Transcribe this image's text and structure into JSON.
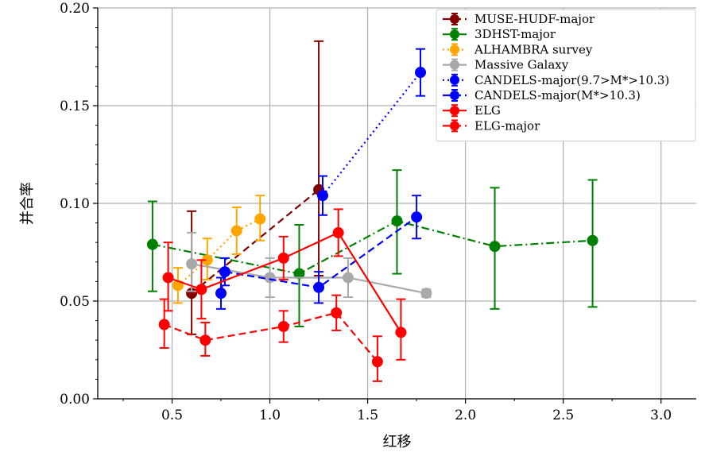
{
  "chart_data": {
    "type": "line",
    "title": "",
    "xlabel": "红移",
    "ylabel": "并合率",
    "xlim": [
      0.12,
      3.18
    ],
    "ylim": [
      0.0,
      0.2
    ],
    "xticks": [
      0.5,
      1.0,
      1.5,
      2.0,
      2.5,
      3.0
    ],
    "xtick_labels": [
      "0.5",
      "1.0",
      "1.5",
      "2.0",
      "2.5",
      "3.0"
    ],
    "yticks": [
      0.0,
      0.05,
      0.1,
      0.15,
      0.2
    ],
    "ytick_labels": [
      "0.00",
      "0.05",
      "0.10",
      "0.15",
      "0.20"
    ],
    "grid": true,
    "legend_position": "top-right",
    "series": [
      {
        "name": "MUSE-HUDF-major",
        "color": "#800000",
        "line_style": "dashed",
        "x": [
          0.6,
          1.25
        ],
        "y": [
          0.054,
          0.107
        ],
        "y_low": [
          0.033,
          0.063
        ],
        "y_high": [
          0.096,
          0.183
        ]
      },
      {
        "name": "3DHST-major",
        "color": "#008000",
        "line_style": "dashdot",
        "x": [
          0.4,
          1.15,
          1.65,
          2.15,
          2.65
        ],
        "y": [
          0.079,
          0.064,
          0.091,
          0.078,
          0.081
        ],
        "y_low": [
          0.055,
          0.037,
          0.064,
          0.046,
          0.047
        ],
        "y_high": [
          0.101,
          0.089,
          0.117,
          0.108,
          0.112
        ]
      },
      {
        "name": "ALHAMBRA survey",
        "color": "#ffa500",
        "line_style": "dotted",
        "x": [
          0.53,
          0.68,
          0.83,
          0.95
        ],
        "y": [
          0.058,
          0.071,
          0.086,
          0.092
        ],
        "y_low": [
          0.049,
          0.061,
          0.074,
          0.081
        ],
        "y_high": [
          0.067,
          0.082,
          0.098,
          0.104
        ]
      },
      {
        "name": "Massive Galaxy",
        "color": "#a9a9a9",
        "line_style": "solid",
        "x": [
          0.6,
          1.0,
          1.4,
          1.8
        ],
        "y": [
          0.069,
          0.062,
          0.062,
          0.054
        ],
        "y_low": [
          0.055,
          0.052,
          0.052,
          0.052
        ],
        "y_high": [
          0.085,
          0.072,
          0.072,
          0.056
        ]
      },
      {
        "name": "CANDELS-major(9.7>M*>10.3)",
        "color": "#0000ff",
        "line_style": "dotted",
        "x": [
          1.27,
          1.77
        ],
        "y": [
          0.104,
          0.167
        ],
        "y_low": [
          0.094,
          0.155
        ],
        "y_high": [
          0.114,
          0.179
        ]
      },
      {
        "name": "CANDELS-major(M*>10.3)",
        "color": "#0000ff",
        "line_style": "dashed",
        "x": [
          0.75,
          0.77,
          1.25,
          1.75
        ],
        "y": [
          0.054,
          0.065,
          0.057,
          0.093
        ],
        "y_low": [
          0.046,
          0.058,
          0.049,
          0.082
        ],
        "y_high": [
          0.062,
          0.072,
          0.065,
          0.104
        ]
      },
      {
        "name": "ELG",
        "color": "#ff0000",
        "line_style": "solid",
        "x": [
          0.48,
          0.65,
          1.07,
          1.35,
          1.67
        ],
        "y": [
          0.062,
          0.056,
          0.072,
          0.085,
          0.034
        ],
        "y_low": [
          0.045,
          0.041,
          0.061,
          0.073,
          0.02
        ],
        "y_high": [
          0.08,
          0.071,
          0.083,
          0.097,
          0.051
        ]
      },
      {
        "name": "ELG-major",
        "color": "#ff0000",
        "line_style": "dashed",
        "x": [
          0.46,
          0.67,
          1.07,
          1.34,
          1.55
        ],
        "y": [
          0.038,
          0.03,
          0.037,
          0.044,
          0.019
        ],
        "y_low": [
          0.026,
          0.022,
          0.029,
          0.035,
          0.009
        ],
        "y_high": [
          0.051,
          0.039,
          0.045,
          0.053,
          0.032
        ]
      }
    ]
  }
}
